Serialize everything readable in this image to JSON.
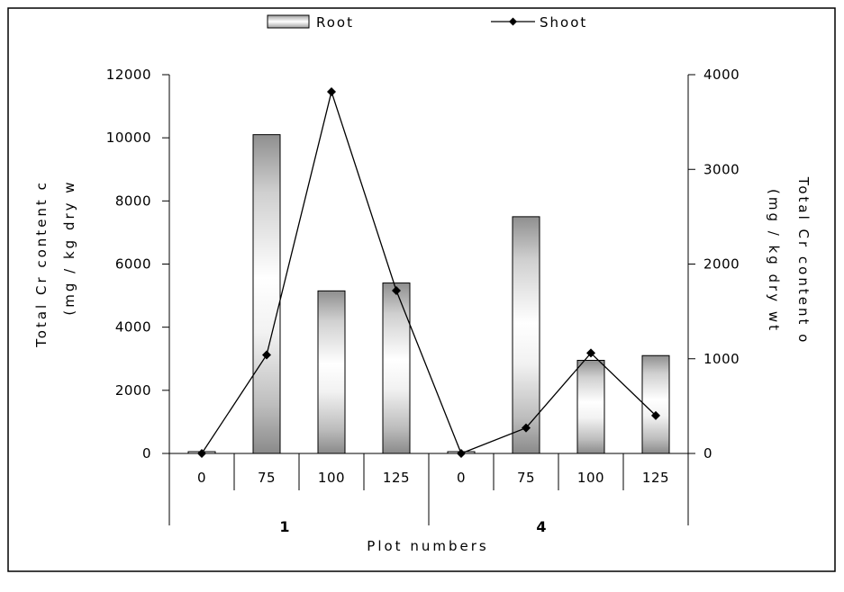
{
  "chart_data": {
    "type": "bar",
    "legend": {
      "position": "top-center",
      "root_label": "Root",
      "shoot_label": "Shoot"
    },
    "groups": [
      {
        "label": "1",
        "categories": [
          "0",
          "75",
          "100",
          "125"
        ]
      },
      {
        "label": "4",
        "categories": [
          "0",
          "75",
          "100",
          "125"
        ]
      }
    ],
    "series": [
      {
        "name": "Root",
        "type": "bar",
        "axis": "left",
        "values": [
          0,
          10100,
          5150,
          5400,
          0,
          7500,
          2950,
          3100
        ]
      },
      {
        "name": "Shoot",
        "type": "line",
        "axis": "right",
        "values": [
          0,
          1040,
          3820,
          1720,
          0,
          270,
          1060,
          400
        ]
      }
    ],
    "y_left": {
      "label_line1": "Total Cr content c",
      "label_line2": "(mg / kg dry w",
      "ylim": [
        0,
        12000
      ],
      "ticks": [
        "0",
        "2000",
        "4000",
        "6000",
        "8000",
        "10000",
        "12000"
      ]
    },
    "y_right": {
      "label_line1": "Total Cr content o",
      "label_line2": "(mg / kg dry wt",
      "ylim": [
        0,
        4000
      ],
      "ticks": [
        "0",
        "1000",
        "2000",
        "3000",
        "4000"
      ]
    },
    "xlabel": "Plot numbers",
    "grid": false
  }
}
